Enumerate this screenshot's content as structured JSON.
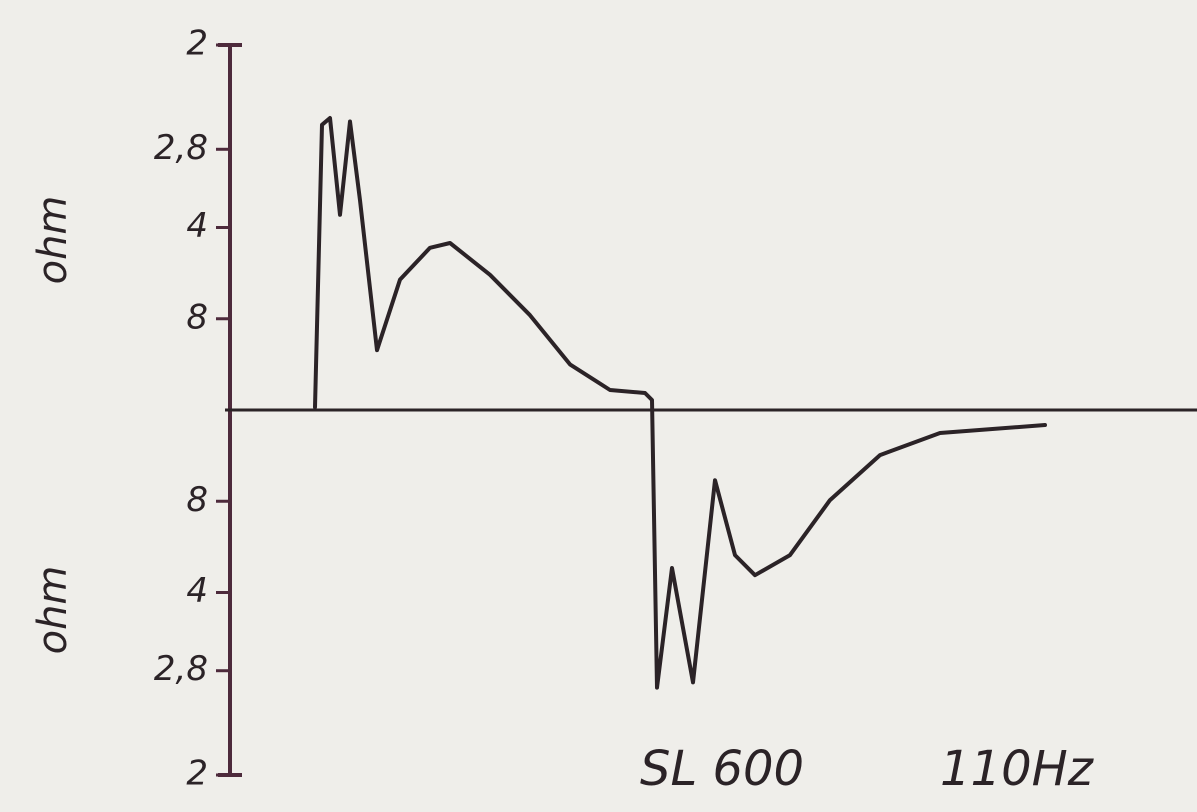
{
  "chart_data": {
    "type": "line",
    "ylabel": "ohm",
    "annotations": [
      "SL 600",
      "110Hz"
    ],
    "yscale": "reciprocal",
    "ylim": [
      -2,
      2
    ],
    "yticks": [
      2,
      {
        "value": 2.8,
        "label": "2,8"
      },
      4,
      8,
      {
        "value": -8,
        "label": "8"
      },
      {
        "value": -4,
        "label": "4"
      },
      {
        "value": -2.8,
        "label": "2,8"
      },
      {
        "value": -2,
        "label": "2"
      }
    ],
    "xlim": [
      0,
      967
    ],
    "x": [
      85,
      92,
      100,
      110,
      120,
      130,
      147,
      170,
      200,
      220,
      260,
      300,
      340,
      380,
      415,
      422,
      427,
      442,
      463,
      485,
      505,
      525,
      560,
      600,
      650,
      710,
      815
    ],
    "values": [
      250,
      2.56,
      2.5,
      3.74,
      2.53,
      3.48,
      12.2,
      5.6,
      4.5,
      4.37,
      5.4,
      7.7,
      16,
      36.5,
      43,
      73,
      -2.63,
      -4.62,
      -2.68,
      -10.4,
      -5.03,
      -4.42,
      -5.03,
      -8.1,
      -16.2,
      -31.7,
      -48.7
    ],
    "color": "#2b2327",
    "axis_color": "#4d2a3c"
  }
}
